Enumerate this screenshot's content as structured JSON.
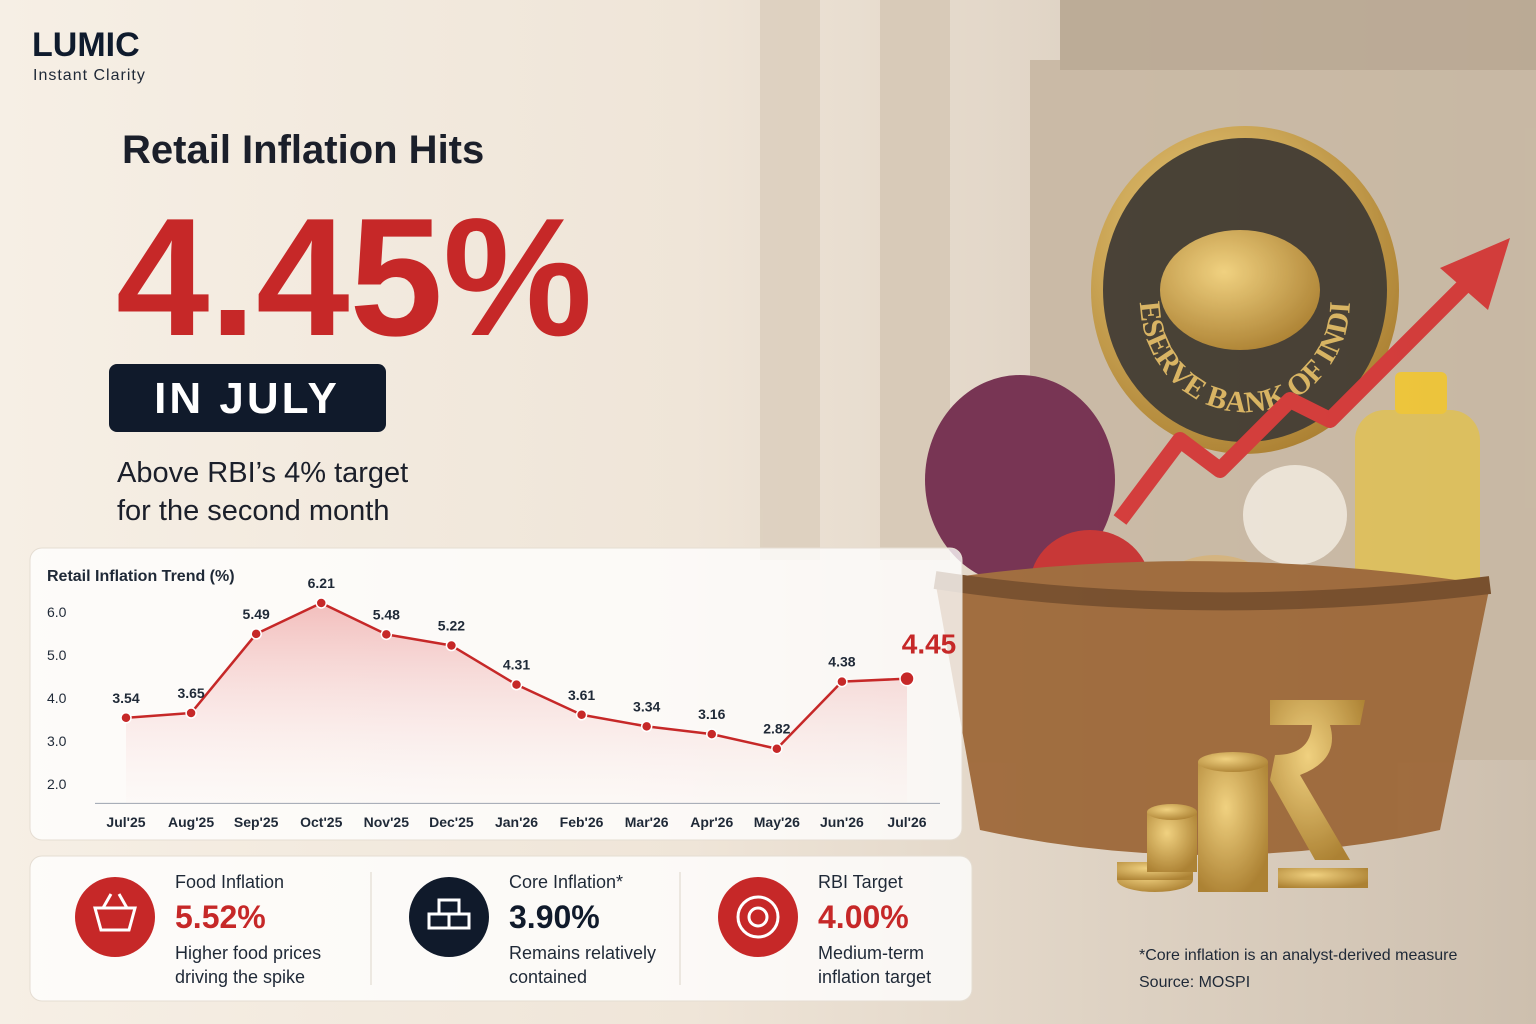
{
  "brand": {
    "name": "LUMIC",
    "tagline": "Instant Clarity"
  },
  "headline": {
    "lead": "Retail Inflation Hits",
    "figure": "4.45%",
    "badge": "IN JULY",
    "sub": [
      "Above RBI’s 4% target",
      "for the second month"
    ]
  },
  "emblem": "RESERVE BANK OF INDIA",
  "chart_data": {
    "type": "line",
    "title": "Retail Inflation Trend (%)",
    "categories": [
      "Jul'25",
      "Aug'25",
      "Sep'25",
      "Oct'25",
      "Nov'25",
      "Dec'25",
      "Jan'26",
      "Feb'26",
      "Mar'26",
      "Apr'26",
      "May'26",
      "Jun'26",
      "Jul'26"
    ],
    "series": [
      {
        "name": "Retail Inflation",
        "color": "#c62828",
        "values": [
          3.54,
          3.65,
          5.49,
          6.21,
          5.48,
          5.22,
          4.31,
          3.61,
          3.34,
          3.16,
          2.82,
          4.38,
          4.45
        ]
      }
    ],
    "ylim": [
      1.55,
      6.5
    ],
    "yticks": [
      {
        "value": 2,
        "label": "2.0"
      },
      {
        "value": 3,
        "label": "3.0"
      },
      {
        "value": 4,
        "label": "4.0"
      },
      {
        "value": 5,
        "label": "5.0"
      },
      {
        "value": 6,
        "label": "6.0"
      }
    ],
    "grid": false
  },
  "stats": [
    {
      "label": "Food Inflation",
      "value": "5.52%",
      "desc": [
        "Higher food prices",
        "driving the spike"
      ]
    },
    {
      "label": "Core Inflation*",
      "value": "3.90%",
      "desc": [
        "Remains relatively",
        "contained"
      ]
    },
    {
      "label": "RBI Target",
      "value": "4.00%",
      "desc": [
        "Medium-term",
        "inflation target"
      ]
    }
  ],
  "footnote": [
    "*Core inflation is an analyst-derived measure",
    "Source: MOSPI"
  ]
}
